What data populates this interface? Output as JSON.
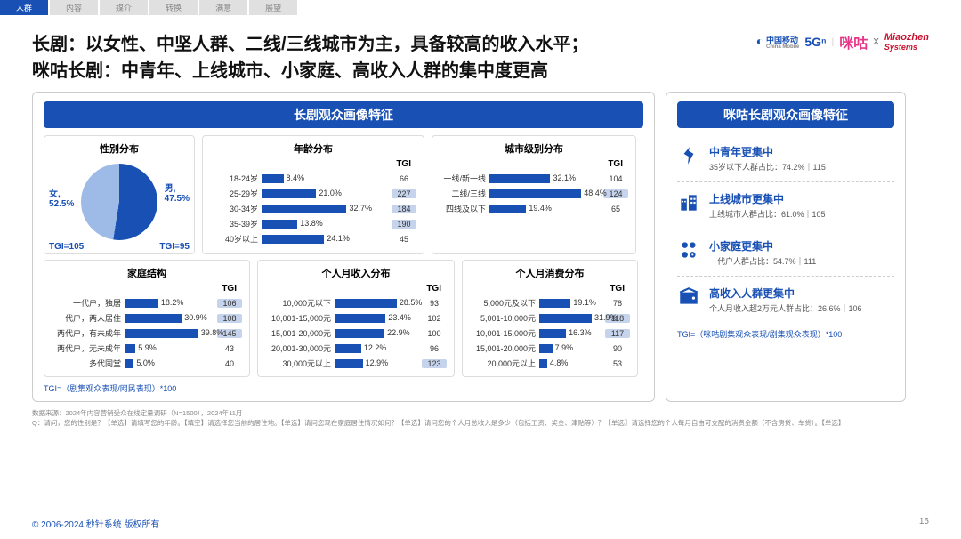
{
  "tabs": [
    "人群",
    "内容",
    "媒介",
    "转换",
    "满意",
    "展望"
  ],
  "active_tab": 0,
  "title_l1": "长剧：以女性、中坚人群、二线/三线城市为主，具备较高的收入水平；",
  "title_l2": "咪咕长剧：中青年、上线城市、小家庭、高收入人群的集中度更高",
  "logos": {
    "china_mobile": "中国移动",
    "cm_en": "China Mobile",
    "fiveg": "5Gⁿ",
    "migu": "咪咕",
    "x": "X",
    "miaozhen": "Miaozhen",
    "mz2": "Systems"
  },
  "left_panel_title": "长剧观众画像特征",
  "right_panel_title": "咪咕长剧观众画像特征",
  "tgi_label": "TGI",
  "pie": {
    "title": "性别分布",
    "female_label": "女,",
    "female_val": "52.5%",
    "female_tgi": "TGI=105",
    "male_label": "男,",
    "male_val": "47.5%",
    "male_tgi": "TGI=95",
    "female_color": "#1850b4",
    "male_color": "#9ebbe8",
    "split_deg": 189
  },
  "age": {
    "title": "年龄分布",
    "rows": [
      {
        "label": "18-24岁",
        "val": 8.4,
        "txt": "8.4%",
        "tgi": 66,
        "hi": false
      },
      {
        "label": "25-29岁",
        "val": 21.0,
        "txt": "21.0%",
        "tgi": 227,
        "hi": true
      },
      {
        "label": "30-34岁",
        "val": 32.7,
        "txt": "32.7%",
        "tgi": 184,
        "hi": true
      },
      {
        "label": "35-39岁",
        "val": 13.8,
        "txt": "13.8%",
        "tgi": 190,
        "hi": true
      },
      {
        "label": "40岁以上",
        "val": 24.1,
        "txt": "24.1%",
        "tgi": 45,
        "hi": false
      }
    ],
    "max": 50
  },
  "city": {
    "title": "城市级别分布",
    "rows": [
      {
        "label": "一线/新一线",
        "val": 32.1,
        "txt": "32.1%",
        "tgi": 104,
        "hi": false
      },
      {
        "label": "二线/三线",
        "val": 48.4,
        "txt": "48.4%",
        "tgi": 124,
        "hi": true
      },
      {
        "label": "四线及以下",
        "val": 19.4,
        "txt": "19.4%",
        "tgi": 65,
        "hi": false
      }
    ],
    "max": 60
  },
  "family": {
    "title": "家庭结构",
    "rows": [
      {
        "label": "一代户，独居",
        "val": 18.2,
        "txt": "18.2%",
        "tgi": 106,
        "hi": true
      },
      {
        "label": "一代户，两人居住",
        "val": 30.9,
        "txt": "30.9%",
        "tgi": 108,
        "hi": true
      },
      {
        "label": "两代户，有未成年",
        "val": 39.8,
        "txt": "39.8%",
        "tgi": 145,
        "hi": true
      },
      {
        "label": "两代户，无未成年",
        "val": 5.9,
        "txt": "5.9%",
        "tgi": 43,
        "hi": false
      },
      {
        "label": "多代同堂",
        "val": 5.0,
        "txt": "5.0%",
        "tgi": 40,
        "hi": false
      }
    ],
    "max": 50,
    "label_w": 82
  },
  "income": {
    "title": "个人月收入分布",
    "rows": [
      {
        "label": "10,000元以下",
        "val": 28.5,
        "txt": "28.5%",
        "tgi": 93,
        "hi": false
      },
      {
        "label": "10,001-15,000元",
        "val": 23.4,
        "txt": "23.4%",
        "tgi": 102,
        "hi": false
      },
      {
        "label": "15,001-20,000元",
        "val": 22.9,
        "txt": "22.9%",
        "tgi": 100,
        "hi": false
      },
      {
        "label": "20,001-30,000元",
        "val": 12.2,
        "txt": "12.2%",
        "tgi": 96,
        "hi": false
      },
      {
        "label": "30,000元以上",
        "val": 12.9,
        "txt": "12.9%",
        "tgi": 123,
        "hi": true
      }
    ],
    "max": 40,
    "label_w": 78
  },
  "spend": {
    "title": "个人月消费分布",
    "rows": [
      {
        "label": "5,000元及以下",
        "val": 19.1,
        "txt": "19.1%",
        "tgi": 78,
        "hi": false
      },
      {
        "label": "5,001-10,000元",
        "val": 31.9,
        "txt": "31.9%",
        "tgi": 118,
        "hi": true
      },
      {
        "label": "10,001-15,000元",
        "val": 16.3,
        "txt": "16.3%",
        "tgi": 117,
        "hi": true
      },
      {
        "label": "15,001-20,000元",
        "val": 7.9,
        "txt": "7.9%",
        "tgi": 90,
        "hi": false
      },
      {
        "label": "20,000元以上",
        "val": 4.8,
        "txt": "4.8%",
        "tgi": 53,
        "hi": false
      }
    ],
    "max": 40,
    "label_w": 78
  },
  "tgi_note_left": "TGI=（剧集观众表现/网民表现）*100",
  "tgi_note_right": "TGI=（咪咕剧集观众表现/剧集观众表现）*100",
  "right_items": [
    {
      "icon": "person",
      "t1": "中青年更集中",
      "t2": "35岁以下人群占比：74.2%｜115"
    },
    {
      "icon": "building",
      "t1": "上线城市更集中",
      "t2": "上线城市人群占比：61.0%｜105"
    },
    {
      "icon": "family",
      "t1": "小家庭更集中",
      "t2": "一代户人群占比：54.7%｜111"
    },
    {
      "icon": "wallet",
      "t1": "高收入人群更集中",
      "t2": "个人月收入超2万元人群占比：26.6%｜106"
    }
  ],
  "source": "数据来源：2024年内容营销受众在线定量调研（N=1500），2024年11月",
  "question": "Q：请问，您的性别是？【单选】请填写您的年龄。【填空】请选择您当前的居住地。【单选】请问您现在家庭居住情况如何？【单选】请问您的个人月总收入是多少（包括工资、奖金、津贴等）？【单选】请选择您的个人每月自由可支配的消费金额（不含房贷、车贷）。【单选】",
  "copyright": "© 2006-2024 秒针系统 版权所有",
  "page": "15"
}
